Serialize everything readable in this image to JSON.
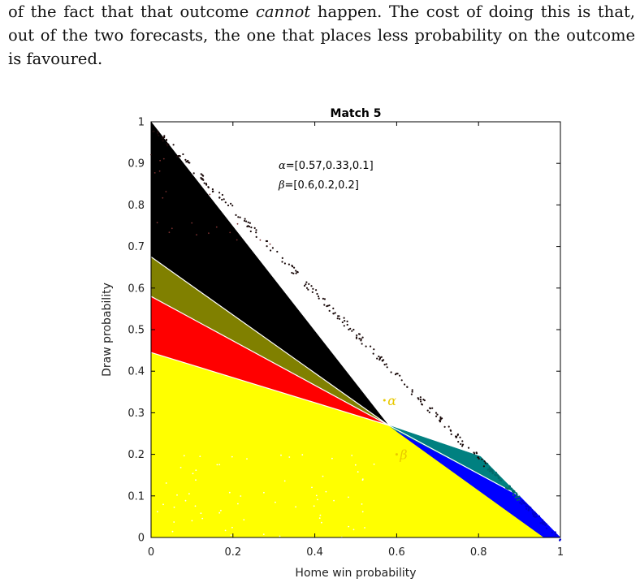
{
  "paragraph": {
    "line1_before": "of the fact that that outcome ",
    "line1_em": "cannot",
    "line1_after": " happen. The cost of doing this is that,",
    "line2": "out of the two forecasts, the one that places less probability on the outcome",
    "line3": "is favoured."
  },
  "chart_data": {
    "type": "scatter",
    "title": "Match 5",
    "xlabel": "Home win probability",
    "ylabel": "Draw probability",
    "xlim": [
      0,
      1
    ],
    "ylim": [
      0,
      1
    ],
    "xticks": [
      "0",
      "0.2",
      "0.4",
      "0.6",
      "0.8",
      "1"
    ],
    "yticks": [
      "0",
      "0.1",
      "0.2",
      "0.3",
      "0.4",
      "0.5",
      "0.6",
      "0.7",
      "0.8",
      "0.9",
      "1"
    ],
    "grid": false,
    "annotation_lines": [
      {
        "greek": "α",
        "text": "=[0.57,0.33,0.1]"
      },
      {
        "greek": "β",
        "text": "=[0.6,0.2,0.2]"
      }
    ],
    "points": [
      {
        "label": "α",
        "x": 0.57,
        "y": 0.33
      },
      {
        "label": "β",
        "x": 0.6,
        "y": 0.2
      }
    ],
    "regions": [
      {
        "color": "#000000",
        "vertices": [
          [
            0,
            0.675
          ],
          [
            0,
            1
          ],
          [
            0.58,
            0.27
          ],
          [
            0.58,
            0.27
          ]
        ]
      },
      {
        "color": "#808000",
        "vertices": [
          [
            0,
            0.58
          ],
          [
            0,
            0.675
          ],
          [
            0.58,
            0.27
          ]
        ]
      },
      {
        "color": "#ff0000",
        "vertices": [
          [
            0,
            0.445
          ],
          [
            0,
            0.58
          ],
          [
            0.58,
            0.27
          ]
        ]
      },
      {
        "color": "#ffff00",
        "vertices": [
          [
            0,
            0
          ],
          [
            0,
            0.445
          ],
          [
            0.58,
            0.27
          ],
          [
            0.6,
            0.255
          ],
          [
            0.96,
            0
          ]
        ]
      },
      {
        "color": "#008080",
        "vertices": [
          [
            0.58,
            0.27
          ],
          [
            0.805,
            0.195
          ],
          [
            0.9,
            0.1
          ],
          [
            0.6,
            0.255
          ]
        ]
      },
      {
        "color": "#0000ff",
        "vertices": [
          [
            0.6,
            0.255
          ],
          [
            0.9,
            0.1
          ],
          [
            1,
            0
          ],
          [
            0.96,
            0
          ]
        ]
      }
    ],
    "colors": {
      "black": "#000000",
      "olive": "#808000",
      "red": "#ff0000",
      "yellow": "#ffff00",
      "teal": "#008080",
      "blue": "#0000ff"
    }
  }
}
